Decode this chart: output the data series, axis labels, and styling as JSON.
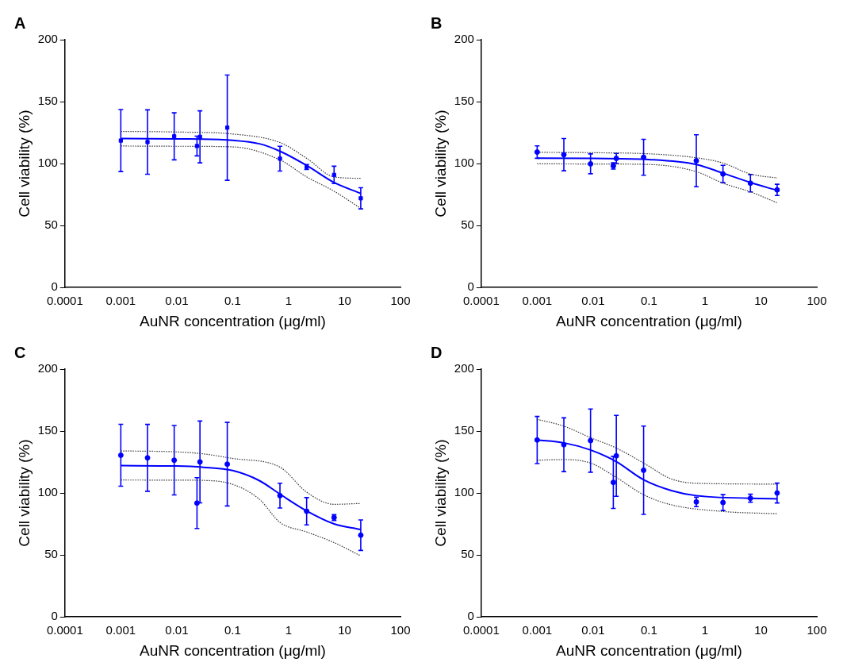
{
  "chart_data": [
    {
      "type": "scatter",
      "title": "A",
      "xlabel": "AuNR concentration (μg/ml)",
      "ylabel": "Cell viability (%)",
      "log": "x",
      "xlim": [
        0.0001,
        100
      ],
      "xticks": [
        0.0001,
        0.001,
        0.01,
        0.1,
        1,
        10,
        100
      ],
      "ylim": [
        0,
        200
      ],
      "yticks": [
        0,
        50,
        100,
        150,
        200
      ],
      "series": [
        {
          "type": "scatter",
          "color": "#0000ff",
          "marker": "square",
          "x": [
            0.001,
            0.003,
            0.009,
            0.023,
            0.026,
            0.08,
            0.7,
            2.1,
            6.5,
            19.5
          ],
          "values": [
            118.6,
            117.4,
            122,
            114.2,
            121.6,
            129,
            104,
            97.3,
            90.9,
            72
          ],
          "errors": [
            25,
            26,
            19,
            8,
            21,
            42.5,
            10,
            2,
            7,
            8.5
          ]
        },
        {
          "type": "line",
          "color": "#0000ff",
          "marker": "none",
          "x": [
            0.001,
            0.01,
            0.1,
            0.3,
            0.7,
            2.1,
            6.5,
            19.5
          ],
          "values": [
            120.2,
            120,
            118.8,
            116,
            110,
            98.5,
            84.7,
            75.9
          ]
        },
        {
          "type": "line",
          "color": "#333333",
          "marker": "none",
          "line_style": "dotted",
          "x": [
            0.001,
            0.01,
            0.1,
            0.7,
            2.1,
            6.5,
            19.5
          ],
          "values": [
            126,
            125.5,
            123.9,
            117,
            104.3,
            89.3,
            88.1
          ]
        },
        {
          "type": "line",
          "color": "#333333",
          "marker": "none",
          "line_style": "dotted",
          "x": [
            0.001,
            0.01,
            0.1,
            0.7,
            2.1,
            6.5,
            19.5
          ],
          "values": [
            114.2,
            114,
            113.5,
            103,
            89.3,
            77.7,
            63.9
          ]
        }
      ]
    },
    {
      "type": "scatter",
      "title": "B",
      "xlabel": "AuNR concentration (μg/ml)",
      "ylabel": "Cell viability (%)",
      "log": "x",
      "xlim": [
        0.0001,
        100
      ],
      "xticks": [
        0.0001,
        0.001,
        0.01,
        0.1,
        1,
        10,
        100
      ],
      "ylim": [
        0,
        200
      ],
      "yticks": [
        0,
        50,
        100,
        150,
        200
      ],
      "series": [
        {
          "type": "scatter",
          "color": "#0000ff",
          "marker": "circle",
          "x": [
            0.001,
            0.003,
            0.009,
            0.023,
            0.026,
            0.08,
            0.7,
            2.1,
            6.5,
            19.5
          ],
          "values": [
            109.3,
            107.2,
            99.8,
            98.1,
            104.2,
            105.1,
            102.3,
            91.6,
            84.2,
            78.8
          ],
          "errors": [
            5,
            13,
            8,
            2.5,
            4,
            14.5,
            21,
            7,
            7,
            4.5
          ]
        },
        {
          "type": "line",
          "color": "#0000ff",
          "marker": "none",
          "x": [
            0.001,
            0.01,
            0.1,
            0.7,
            2.1,
            6.5,
            19.5
          ],
          "values": [
            104.4,
            104.2,
            103.3,
            99.3,
            92.3,
            84.7,
            78.4
          ]
        },
        {
          "type": "line",
          "color": "#333333",
          "marker": "none",
          "line_style": "dotted",
          "x": [
            0.001,
            0.01,
            0.1,
            0.7,
            2.1,
            6.5,
            19.5
          ],
          "values": [
            109.1,
            108.8,
            107.9,
            104.7,
            100.5,
            91.6,
            88.4
          ]
        },
        {
          "type": "line",
          "color": "#333333",
          "marker": "none",
          "line_style": "dotted",
          "x": [
            0.001,
            0.01,
            0.1,
            0.7,
            2.1,
            6.5,
            19.5
          ],
          "values": [
            99.8,
            99.7,
            99.3,
            93.5,
            84.2,
            77.2,
            68.4
          ]
        }
      ]
    },
    {
      "type": "scatter",
      "title": "C",
      "xlabel": "AuNR concentration (μg/ml)",
      "ylabel": "Cell viability (%)",
      "log": "x",
      "xlim": [
        0.0001,
        100
      ],
      "xticks": [
        0.0001,
        0.001,
        0.01,
        0.1,
        1,
        10,
        100
      ],
      "ylim": [
        0,
        200
      ],
      "yticks": [
        0,
        50,
        100,
        150,
        200
      ],
      "series": [
        {
          "type": "scatter",
          "color": "#0000ff",
          "marker": "circle",
          "x": [
            0.001,
            0.003,
            0.009,
            0.023,
            0.026,
            0.08,
            0.7,
            2.1,
            6.5,
            19.5
          ],
          "values": [
            130.5,
            128.4,
            126.5,
            91.9,
            125.1,
            123.3,
            97.9,
            85.3,
            80.2,
            66
          ],
          "errors": [
            25,
            27,
            28,
            20.5,
            33,
            33.7,
            10,
            11,
            2.3,
            12.3
          ]
        },
        {
          "type": "line",
          "color": "#0000ff",
          "marker": "none",
          "x": [
            0.001,
            0.01,
            0.03,
            0.1,
            0.3,
            0.7,
            2.1,
            6.5,
            19.5
          ],
          "values": [
            122.1,
            121.8,
            120.8,
            118.1,
            110,
            99.1,
            85.6,
            75.1,
            70.5
          ]
        },
        {
          "type": "line",
          "color": "#333333",
          "marker": "none",
          "line_style": "dotted",
          "x": [
            0.001,
            0.01,
            0.03,
            0.1,
            0.7,
            2.1,
            6.5,
            19.5
          ],
          "values": [
            134,
            133.2,
            131.6,
            127.9,
            120.9,
            100.7,
            90.9,
            91.6
          ]
        },
        {
          "type": "line",
          "color": "#333333",
          "marker": "none",
          "line_style": "dotted",
          "x": [
            0.001,
            0.01,
            0.03,
            0.1,
            0.3,
            0.7,
            2.1,
            6.5,
            19.5
          ],
          "values": [
            110.5,
            110.4,
            110.2,
            107,
            95,
            76.3,
            68.6,
            60,
            49.3
          ]
        }
      ]
    },
    {
      "type": "scatter",
      "title": "D",
      "xlabel": "AuNR concentration (μg/ml)",
      "ylabel": "Cell viability (%)",
      "log": "x",
      "xlim": [
        0.0001,
        100
      ],
      "xticks": [
        0.0001,
        0.001,
        0.01,
        0.1,
        1,
        10,
        100
      ],
      "ylim": [
        0,
        200
      ],
      "yticks": [
        0,
        50,
        100,
        150,
        200
      ],
      "series": [
        {
          "type": "scatter",
          "color": "#0000ff",
          "marker": "circle",
          "x": [
            0.001,
            0.003,
            0.009,
            0.023,
            0.026,
            0.08,
            0.7,
            2.1,
            6.5,
            19.5
          ],
          "values": [
            142.8,
            139,
            142.3,
            108.6,
            130,
            118.4,
            92.8,
            92.3,
            95.8,
            100
          ],
          "errors": [
            19,
            21.7,
            25.5,
            21,
            32.7,
            35.6,
            3.8,
            6.4,
            3.2,
            8
          ]
        },
        {
          "type": "line",
          "color": "#0000ff",
          "marker": "none",
          "x": [
            0.001,
            0.003,
            0.009,
            0.026,
            0.08,
            0.25,
            0.7,
            19.5
          ],
          "values": [
            142.8,
            140.5,
            134.7,
            125.3,
            110.7,
            102,
            97.9,
            95.3
          ]
        },
        {
          "type": "line",
          "color": "#333333",
          "marker": "none",
          "line_style": "dotted",
          "x": [
            0.001,
            0.003,
            0.009,
            0.026,
            0.08,
            0.25,
            0.7,
            19.5
          ],
          "values": [
            159.5,
            154,
            144.7,
            136.3,
            124.2,
            111.4,
            107.9,
            107.2
          ]
        },
        {
          "type": "line",
          "color": "#333333",
          "marker": "none",
          "line_style": "dotted",
          "x": [
            0.001,
            0.003,
            0.009,
            0.026,
            0.08,
            0.25,
            2.1,
            19.5
          ],
          "values": [
            126.5,
            127,
            124.2,
            112.6,
            98.6,
            90.5,
            85.1,
            83.3
          ]
        }
      ]
    }
  ]
}
